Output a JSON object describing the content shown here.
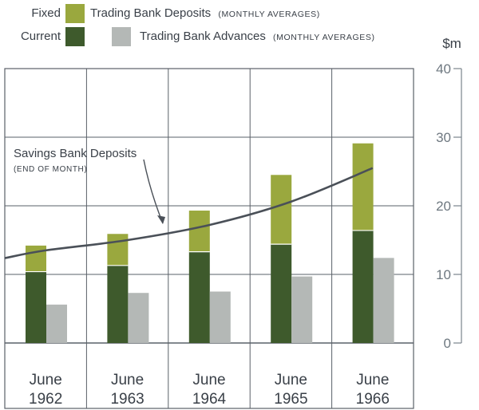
{
  "legend": {
    "fixed": "Fixed",
    "current": "Current",
    "deposits_title": "Trading Bank Deposits",
    "deposits_note": "(MONTHLY AVERAGES)",
    "advances_title": "Trading Bank Advances",
    "advances_note": "(MONTHLY AVERAGES)"
  },
  "annotation": {
    "title": "Savings Bank Deposits",
    "note": "(END OF MONTH)"
  },
  "axis": {
    "unit": "$m",
    "ticks": [
      "0",
      "10",
      "20",
      "30",
      "40"
    ]
  },
  "colors": {
    "fixed": "#9aa83e",
    "current": "#3e5a2c",
    "advances": "#b4b8b6",
    "savings_line": "#4a5058",
    "grid": "#5a6068",
    "text": "#3a4048"
  },
  "chart_data": {
    "type": "bar",
    "categories": [
      "June 1962",
      "June 1963",
      "June 1964",
      "June 1965",
      "June 1966"
    ],
    "category_lines": [
      [
        "June",
        "1962"
      ],
      [
        "June",
        "1963"
      ],
      [
        "June",
        "1964"
      ],
      [
        "June",
        "1965"
      ],
      [
        "June",
        "1966"
      ]
    ],
    "series": [
      {
        "name": "Current",
        "group": "Trading Bank Deposits (MONTHLY AVERAGES)",
        "stack": "deposits",
        "values": [
          10.4,
          11.3,
          13.3,
          14.4,
          16.4
        ]
      },
      {
        "name": "Fixed",
        "group": "Trading Bank Deposits (MONTHLY AVERAGES)",
        "stack": "deposits",
        "values": [
          3.8,
          4.6,
          6.0,
          10.1,
          12.7
        ]
      },
      {
        "name": "Trading Bank Advances (MONTHLY AVERAGES)",
        "stack": "advances",
        "values": [
          5.6,
          7.3,
          7.5,
          9.7,
          12.4
        ]
      }
    ],
    "line_series": {
      "name": "Savings Bank Deposits (END OF MONTH)",
      "x": [
        0,
        1,
        2,
        3,
        4
      ],
      "values": [
        13.5,
        15.0,
        17.2,
        20.6,
        25.5
      ]
    },
    "ylabel": "$m",
    "ylim": [
      0,
      40
    ],
    "grid": true,
    "legend_position": "top-left"
  }
}
